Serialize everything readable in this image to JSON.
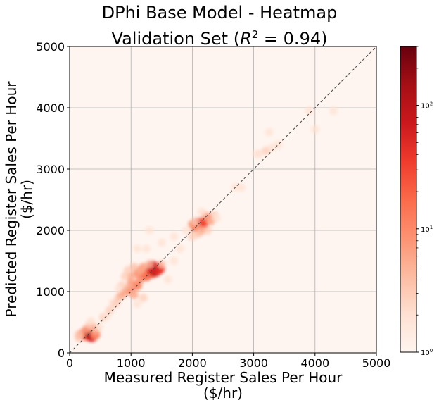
{
  "chart_data": {
    "type": "heatmap",
    "title_line1": "DPhi Base Model - Heatmap",
    "title_line2_prefix": "Validation Set (",
    "title_r": "R",
    "title_exp": "2",
    "title_line2_suffix": " = 0.94)",
    "xlabel_line1": "Measured Register Sales Per Hour",
    "xlabel_line2": "($/hr)",
    "ylabel_line1": "Predicted Register Sales Per Hour",
    "ylabel_line2": "($/hr)",
    "xlim": [
      0,
      5000
    ],
    "ylim": [
      0,
      5000
    ],
    "xticks": [
      0,
      1000,
      2000,
      3000,
      4000,
      5000
    ],
    "yticks": [
      0,
      1000,
      2000,
      3000,
      4000,
      5000
    ],
    "grid": true,
    "reference_line": {
      "from": [
        0,
        0
      ],
      "to": [
        5000,
        5000
      ],
      "style": "dashed"
    },
    "colorbar": {
      "scale": "log",
      "colormap": "Reds",
      "range": [
        1,
        300
      ],
      "major_ticks": [
        {
          "value": 1,
          "base": "10",
          "exp": "0"
        },
        {
          "value": 10,
          "base": "10",
          "exp": "1"
        },
        {
          "value": 100,
          "base": "10",
          "exp": "2"
        }
      ]
    },
    "colors": {
      "background": "#fff5f0",
      "grid": "#b0b0b0",
      "reference_line": "#444444"
    },
    "density_points": [
      [
        300,
        300,
        40
      ],
      [
        250,
        280,
        20
      ],
      [
        350,
        320,
        80
      ],
      [
        200,
        320,
        8
      ],
      [
        360,
        280,
        60
      ],
      [
        150,
        250,
        4
      ],
      [
        330,
        350,
        150
      ],
      [
        380,
        420,
        6
      ],
      [
        420,
        300,
        10
      ],
      [
        270,
        380,
        8
      ],
      [
        320,
        460,
        3
      ],
      [
        350,
        520,
        2
      ],
      [
        150,
        300,
        4
      ],
      [
        420,
        380,
        5
      ],
      [
        480,
        430,
        2
      ],
      [
        550,
        580,
        3
      ],
      [
        600,
        600,
        2
      ],
      [
        650,
        700,
        3
      ],
      [
        700,
        820,
        2
      ],
      [
        750,
        800,
        3
      ],
      [
        800,
        900,
        4
      ],
      [
        850,
        950,
        5
      ],
      [
        900,
        1000,
        6
      ],
      [
        950,
        1050,
        5
      ],
      [
        1000,
        1000,
        8
      ],
      [
        1050,
        950,
        5
      ],
      [
        1000,
        1150,
        6
      ],
      [
        1100,
        1100,
        10
      ],
      [
        1150,
        1200,
        8
      ],
      [
        1200,
        1300,
        12
      ],
      [
        1250,
        1250,
        15
      ],
      [
        1300,
        1350,
        20
      ],
      [
        1350,
        1300,
        25
      ],
      [
        1400,
        1350,
        120
      ],
      [
        1450,
        1380,
        40
      ],
      [
        1350,
        1400,
        60
      ],
      [
        1100,
        1300,
        8
      ],
      [
        1000,
        1250,
        5
      ],
      [
        950,
        1350,
        3
      ],
      [
        1200,
        1400,
        6
      ],
      [
        1300,
        1450,
        4
      ],
      [
        1500,
        1450,
        3
      ],
      [
        1150,
        1350,
        6
      ],
      [
        1050,
        1400,
        4
      ],
      [
        850,
        1100,
        3
      ],
      [
        900,
        1250,
        3
      ],
      [
        800,
        1050,
        2
      ],
      [
        1200,
        900,
        3
      ],
      [
        1100,
        800,
        2
      ],
      [
        1600,
        1200,
        2
      ],
      [
        1700,
        1500,
        2
      ],
      [
        1250,
        1700,
        2
      ],
      [
        1300,
        2000,
        2
      ],
      [
        1100,
        1700,
        2
      ],
      [
        1500,
        1800,
        2
      ],
      [
        1800,
        1700,
        2
      ],
      [
        1700,
        1900,
        2
      ],
      [
        2100,
        2100,
        60
      ],
      [
        2150,
        2100,
        40
      ],
      [
        2200,
        2150,
        30
      ],
      [
        2250,
        2200,
        20
      ],
      [
        2050,
        2050,
        10
      ],
      [
        2000,
        2100,
        8
      ],
      [
        2150,
        2000,
        6
      ],
      [
        2300,
        2150,
        5
      ],
      [
        2100,
        1950,
        4
      ],
      [
        2200,
        2250,
        4
      ],
      [
        2250,
        2000,
        3
      ],
      [
        2350,
        2250,
        3
      ],
      [
        2000,
        1900,
        3
      ],
      [
        2150,
        2300,
        2
      ],
      [
        2400,
        2200,
        2
      ],
      [
        1900,
        2000,
        2
      ],
      [
        2050,
        2150,
        3
      ],
      [
        2800,
        2700,
        2
      ],
      [
        2700,
        2700,
        2
      ],
      [
        3200,
        3300,
        3
      ],
      [
        3300,
        3350,
        2
      ],
      [
        3100,
        3250,
        2
      ],
      [
        3400,
        3400,
        2
      ],
      [
        3250,
        3600,
        2
      ],
      [
        3050,
        3250,
        2
      ],
      [
        4000,
        3650,
        2
      ],
      [
        3900,
        3950,
        2
      ],
      [
        4300,
        3950,
        2
      ]
    ]
  }
}
